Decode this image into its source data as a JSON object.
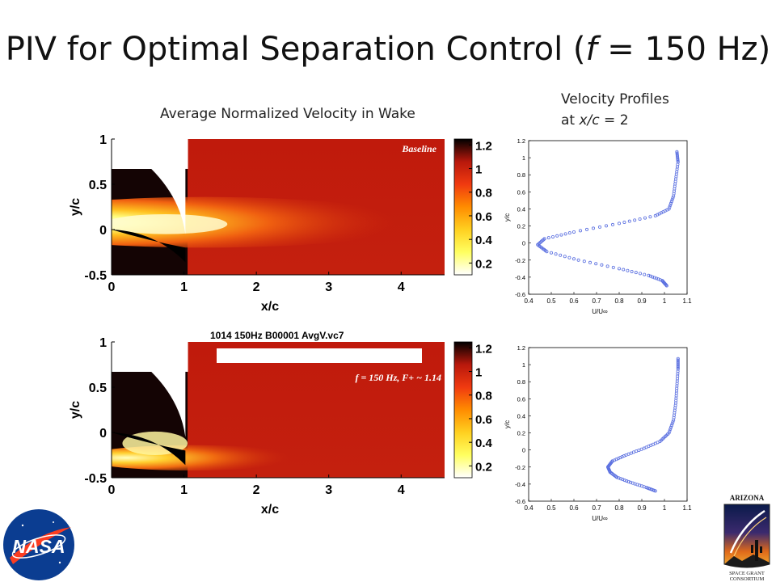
{
  "slide": {
    "title_prefix": "PIV for Optimal Separation Control (",
    "title_f": "f",
    "title_suffix": " = 150 Hz)",
    "wake_caption": "Average Normalized Velocity in Wake",
    "profiles_caption_line1": "Velocity Profiles",
    "profiles_caption_line2_prefix": "at ",
    "profiles_caption_line2_var": "x/c",
    "profiles_caption_line2_suffix": " = 2"
  },
  "colors": {
    "profile_marker": "#5a6fe0",
    "colormap": [
      "#ffffff",
      "#ffff60",
      "#ffd020",
      "#ff8c00",
      "#f03a10",
      "#b8180c",
      "#000000"
    ]
  },
  "logos": {
    "nasa_text": "NASA",
    "arizona_top": "ARIZONA",
    "arizona_bottom_1": "SPACE GRANT",
    "arizona_bottom_2": "CONSORTIUM"
  },
  "chart_data": [
    {
      "type": "heatmap",
      "title": "",
      "annotation": "Baseline",
      "xlabel": "x/c",
      "ylabel": "y/c",
      "xlim": [
        0,
        4.6
      ],
      "ylim": [
        -0.5,
        1
      ],
      "xticks": [
        "0",
        "1",
        "2",
        "3",
        "4"
      ],
      "yticks": [
        "1",
        "0.5",
        "0",
        "-0.5"
      ],
      "colorbar_ticks": [
        "1.2",
        "1",
        "0.8",
        "0.6",
        "0.4",
        "0.2"
      ],
      "colorbar_range": [
        0.1,
        1.25
      ]
    },
    {
      "type": "heatmap",
      "title": "1014 150Hz B00001 AvgV.vc7",
      "annotation": "f = 150 Hz, F+ ~ 1.14",
      "xlabel": "x/c",
      "ylabel": "y/c",
      "xlim": [
        0,
        4.6
      ],
      "ylim": [
        -0.5,
        1
      ],
      "xticks": [
        "0",
        "1",
        "2",
        "3",
        "4"
      ],
      "yticks": [
        "1",
        "0.5",
        "0",
        "-0.5"
      ],
      "colorbar_ticks": [
        "1.2",
        "1",
        "0.8",
        "0.6",
        "0.4",
        "0.2"
      ],
      "colorbar_range": [
        0.1,
        1.25
      ]
    },
    {
      "type": "scatter",
      "title": "",
      "xlabel": "U/U∞",
      "ylabel": "y/c",
      "xlim": [
        0.4,
        1.1
      ],
      "ylim": [
        -0.6,
        1.2
      ],
      "xticks": [
        "0.4",
        "0.5",
        "0.6",
        "0.7",
        "0.8",
        "0.9",
        "1",
        "1.1"
      ],
      "yticks": [
        "1.2",
        "1",
        "0.8",
        "0.6",
        "0.4",
        "0.2",
        "0",
        "-0.2",
        "-0.4",
        "-0.6"
      ],
      "x": [
        1.01,
        0.99,
        0.93,
        0.8,
        0.62,
        0.48,
        0.44,
        0.47,
        0.6,
        0.8,
        0.96,
        1.02,
        1.04,
        1.05,
        1.06,
        1.055
      ],
      "y": [
        -0.5,
        -0.44,
        -0.38,
        -0.3,
        -0.2,
        -0.1,
        -0.02,
        0.05,
        0.13,
        0.23,
        0.32,
        0.4,
        0.55,
        0.75,
        0.95,
        1.07
      ]
    },
    {
      "type": "scatter",
      "title": "",
      "xlabel": "U/U∞",
      "ylabel": "y/c",
      "xlim": [
        0.4,
        1.1
      ],
      "ylim": [
        -0.6,
        1.2
      ],
      "xticks": [
        "0.4",
        "0.5",
        "0.6",
        "0.7",
        "0.8",
        "0.9",
        "1",
        "1.1"
      ],
      "yticks": [
        "1.2",
        "1",
        "0.8",
        "0.6",
        "0.4",
        "0.2",
        "0",
        "-0.2",
        "-0.4",
        "-0.6"
      ],
      "x": [
        0.96,
        0.92,
        0.85,
        0.79,
        0.76,
        0.75,
        0.77,
        0.83,
        0.91,
        0.98,
        1.02,
        1.04,
        1.05,
        1.055,
        1.06,
        1.06
      ],
      "y": [
        -0.48,
        -0.44,
        -0.38,
        -0.32,
        -0.26,
        -0.2,
        -0.13,
        -0.06,
        0.02,
        0.1,
        0.2,
        0.35,
        0.55,
        0.75,
        0.95,
        1.07
      ]
    }
  ]
}
